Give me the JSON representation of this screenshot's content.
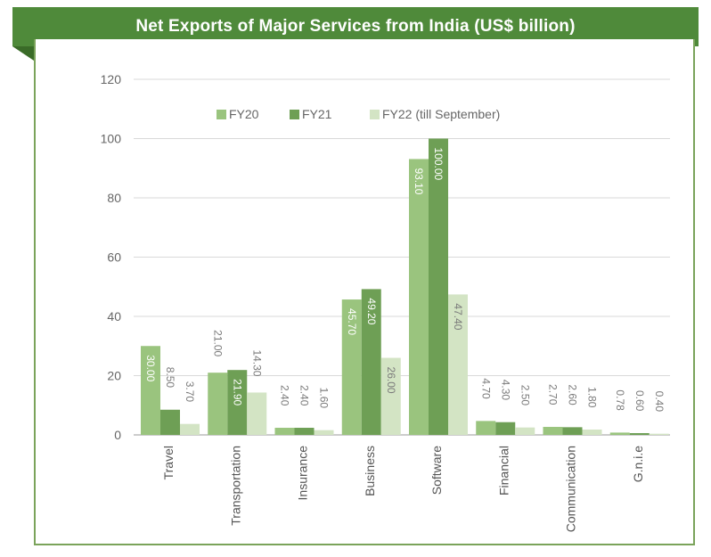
{
  "title": "Net Exports of Major Services from India (US$ billion)",
  "colors": {
    "banner": "#4f8a3a",
    "fy20": "#9ac47e",
    "fy21": "#6e9f55",
    "fy22": "#d3e4c4"
  },
  "chart_data": {
    "type": "bar",
    "title": "Net Exports of Major Services from India (US$ billion)",
    "xlabel": "",
    "ylabel": "",
    "ylim": [
      0,
      120
    ],
    "yticks": [
      "0",
      "20",
      "40",
      "60",
      "80",
      "100",
      "120"
    ],
    "grid": true,
    "legend_position": "top-right",
    "categories": [
      "Travel",
      "Transportation",
      "Insurance",
      "Business",
      "Software",
      "Financial",
      "Communication",
      "G.n.i.e"
    ],
    "series": [
      {
        "name": "FY20",
        "values": [
          30.0,
          21.0,
          2.4,
          45.7,
          93.1,
          4.7,
          2.7,
          0.78
        ],
        "labels": [
          "30.00",
          "21.00",
          "2.40",
          "45.70",
          "93.10",
          "4.70",
          "2.70",
          "0.78"
        ]
      },
      {
        "name": "FY21",
        "values": [
          8.5,
          21.9,
          2.4,
          49.2,
          100.0,
          4.3,
          2.6,
          0.6
        ],
        "labels": [
          "8.50",
          "21.90",
          "2.40",
          "49.20",
          "100.00",
          "4.30",
          "2.60",
          "0.60"
        ]
      },
      {
        "name": "FY22 (till September)",
        "values": [
          3.7,
          14.3,
          1.6,
          26.0,
          47.4,
          2.5,
          1.8,
          0.4
        ],
        "labels": [
          "3.70",
          "14.30",
          "1.60",
          "26.00",
          "47.40",
          "2.50",
          "1.80",
          "0.40"
        ]
      }
    ]
  }
}
